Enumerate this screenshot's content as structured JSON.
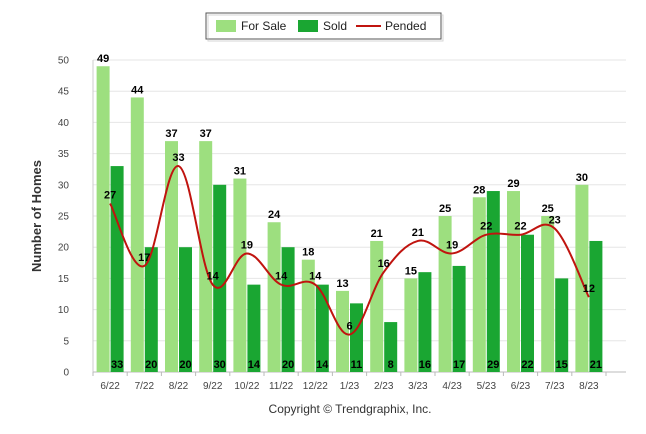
{
  "chart_data": {
    "type": "bar",
    "categories": [
      "6/22",
      "7/22",
      "8/22",
      "9/22",
      "10/22",
      "11/22",
      "12/22",
      "1/23",
      "2/23",
      "3/23",
      "4/23",
      "5/23",
      "6/23",
      "7/23",
      "8/23"
    ],
    "series": [
      {
        "name": "For Sale",
        "type": "bar",
        "color": "#9ddf7f",
        "values": [
          49,
          44,
          37,
          37,
          31,
          24,
          18,
          13,
          21,
          15,
          25,
          28,
          29,
          25,
          30
        ]
      },
      {
        "name": "Sold",
        "type": "bar",
        "color": "#1aa632",
        "values": [
          33,
          20,
          20,
          30,
          14,
          20,
          14,
          11,
          8,
          16,
          17,
          29,
          22,
          15,
          21
        ]
      },
      {
        "name": "Pended",
        "type": "line",
        "color": "#c0140f",
        "values": [
          27,
          17,
          33,
          14,
          19,
          14,
          14,
          6,
          16,
          21,
          19,
          22,
          22,
          23,
          12
        ]
      }
    ],
    "ylabel": "Number of Homes",
    "ylim": [
      0,
      50
    ],
    "yticks": [
      0,
      5,
      10,
      15,
      20,
      25,
      30,
      35,
      40,
      45,
      50
    ],
    "legend_position": "top-center",
    "grid": true,
    "footer": "Copyright © Trendgraphix, Inc."
  }
}
